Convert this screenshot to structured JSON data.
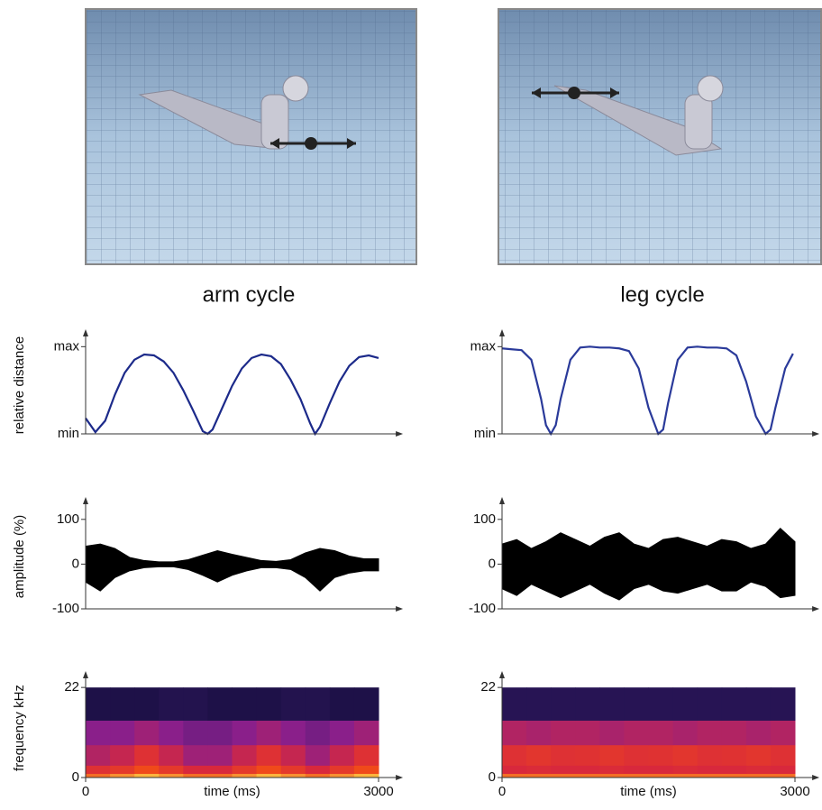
{
  "columns": [
    {
      "title": "arm cycle"
    },
    {
      "title": "leg cycle"
    }
  ],
  "chart_data": [
    {
      "type": "line",
      "ylabel": "relative distance",
      "xlim": [
        0,
        3250
      ],
      "ylim": [
        0,
        1.2
      ],
      "yticks": [
        {
          "value": 0,
          "label": "min"
        },
        {
          "value": 1,
          "label": "max"
        }
      ],
      "color": "#1c2a8a",
      "x": [
        0,
        100,
        200,
        300,
        400,
        500,
        600,
        700,
        800,
        900,
        1000,
        1100,
        1200,
        1250,
        1300,
        1400,
        1500,
        1600,
        1700,
        1800,
        1900,
        2000,
        2100,
        2200,
        2300,
        2350,
        2400,
        2500,
        2600,
        2700,
        2800,
        2900,
        3000
      ],
      "values": [
        0.18,
        0.02,
        0.15,
        0.45,
        0.7,
        0.85,
        0.91,
        0.9,
        0.83,
        0.7,
        0.5,
        0.27,
        0.03,
        0,
        0.05,
        0.3,
        0.55,
        0.75,
        0.87,
        0.91,
        0.89,
        0.8,
        0.62,
        0.4,
        0.12,
        0,
        0.08,
        0.35,
        0.6,
        0.78,
        0.88,
        0.9,
        0.87
      ]
    },
    {
      "type": "band",
      "ylabel": "amplitude (%)",
      "xlim": [
        0,
        3250
      ],
      "ylim": [
        -100,
        150
      ],
      "yticks": [
        -100,
        0,
        100
      ],
      "color": "#000000",
      "x": [
        0,
        150,
        300,
        450,
        600,
        750,
        900,
        1050,
        1200,
        1350,
        1500,
        1650,
        1800,
        1950,
        2100,
        2250,
        2400,
        2550,
        2700,
        2850,
        3000
      ],
      "upper": [
        40,
        45,
        35,
        15,
        8,
        5,
        5,
        10,
        20,
        30,
        22,
        15,
        8,
        6,
        10,
        25,
        35,
        30,
        18,
        12,
        12
      ],
      "lower": [
        -40,
        -60,
        -30,
        -15,
        -8,
        -6,
        -6,
        -12,
        -25,
        -40,
        -25,
        -15,
        -8,
        -8,
        -12,
        -30,
        -60,
        -30,
        -20,
        -15,
        -15
      ]
    },
    {
      "type": "heatmap",
      "ylabel": "frequency kHz",
      "xlabel": "time (ms)",
      "xlim": [
        0,
        3250
      ],
      "ylim": [
        0,
        26
      ],
      "yticks": [
        0,
        22
      ],
      "xticks": [
        0,
        3000
      ],
      "colormap": [
        "#0b0b2e",
        "#3a1a6e",
        "#8a1f8a",
        "#d8283c",
        "#f04a1a",
        "#ffd84a"
      ],
      "xbins": [
        0,
        250,
        500,
        750,
        1000,
        1250,
        1500,
        1750,
        2000,
        2250,
        2500,
        2750,
        3000
      ],
      "ybins": [
        0,
        1,
        3,
        8,
        14,
        22
      ],
      "z": [
        [
          0.85,
          0.9,
          0.95,
          0.9,
          0.85,
          0.85,
          0.9,
          0.95,
          0.9,
          0.85,
          0.9,
          0.95
        ],
        [
          0.65,
          0.7,
          0.8,
          0.7,
          0.6,
          0.6,
          0.7,
          0.8,
          0.7,
          0.6,
          0.7,
          0.8
        ],
        [
          0.5,
          0.55,
          0.65,
          0.55,
          0.45,
          0.45,
          0.55,
          0.65,
          0.55,
          0.45,
          0.55,
          0.65
        ],
        [
          0.4,
          0.4,
          0.45,
          0.4,
          0.35,
          0.35,
          0.4,
          0.45,
          0.4,
          0.35,
          0.4,
          0.45
        ],
        [
          0.08,
          0.08,
          0.08,
          0.1,
          0.1,
          0.08,
          0.08,
          0.08,
          0.1,
          0.1,
          0.08,
          0.08
        ]
      ]
    },
    {
      "type": "line",
      "xlim": [
        0,
        3250
      ],
      "ylim": [
        0,
        1.2
      ],
      "yticks": [
        {
          "value": 0,
          "label": "min"
        },
        {
          "value": 1,
          "label": "max"
        }
      ],
      "color": "#2a3a9a",
      "x": [
        0,
        100,
        200,
        300,
        400,
        450,
        500,
        550,
        600,
        700,
        800,
        900,
        1000,
        1100,
        1200,
        1300,
        1400,
        1500,
        1600,
        1650,
        1700,
        1800,
        1900,
        2000,
        2100,
        2200,
        2300,
        2400,
        2500,
        2600,
        2700,
        2750,
        2800,
        2900,
        2980
      ],
      "values": [
        0.98,
        0.97,
        0.96,
        0.85,
        0.4,
        0.1,
        0,
        0.1,
        0.4,
        0.85,
        0.99,
        1,
        0.99,
        0.99,
        0.98,
        0.95,
        0.75,
        0.3,
        0,
        0.05,
        0.35,
        0.85,
        0.99,
        1,
        0.99,
        0.99,
        0.98,
        0.9,
        0.6,
        0.2,
        0,
        0.05,
        0.3,
        0.75,
        0.92
      ]
    },
    {
      "type": "band",
      "xlim": [
        0,
        3250
      ],
      "ylim": [
        -100,
        150
      ],
      "yticks": [
        -100,
        0,
        100
      ],
      "color": "#000000",
      "x": [
        0,
        150,
        300,
        450,
        600,
        750,
        900,
        1050,
        1200,
        1350,
        1500,
        1650,
        1800,
        1950,
        2100,
        2250,
        2400,
        2550,
        2700,
        2850,
        3000
      ],
      "upper": [
        45,
        55,
        35,
        50,
        70,
        55,
        40,
        60,
        70,
        45,
        35,
        55,
        60,
        50,
        40,
        55,
        50,
        35,
        45,
        80,
        50
      ],
      "lower": [
        -55,
        -70,
        -45,
        -60,
        -75,
        -60,
        -45,
        -65,
        -80,
        -55,
        -45,
        -60,
        -65,
        -55,
        -45,
        -60,
        -60,
        -40,
        -50,
        -75,
        -70
      ]
    },
    {
      "type": "heatmap",
      "xlabel": "time (ms)",
      "xlim": [
        0,
        3250
      ],
      "ylim": [
        0,
        26
      ],
      "yticks": [
        0,
        22
      ],
      "xticks": [
        0,
        3000
      ],
      "colormap": [
        "#0b0b2e",
        "#3a1a6e",
        "#8a1f8a",
        "#d8283c",
        "#f04a1a",
        "#ffd84a"
      ],
      "xbins": [
        0,
        250,
        500,
        750,
        1000,
        1250,
        1500,
        1750,
        2000,
        2250,
        2500,
        2750,
        3000
      ],
      "ybins": [
        0,
        1,
        3,
        8,
        14,
        22
      ],
      "z": [
        [
          0.85,
          0.85,
          0.85,
          0.85,
          0.85,
          0.85,
          0.85,
          0.85,
          0.85,
          0.85,
          0.85,
          0.85
        ],
        [
          0.6,
          0.62,
          0.6,
          0.6,
          0.62,
          0.6,
          0.6,
          0.62,
          0.6,
          0.6,
          0.62,
          0.6
        ],
        [
          0.65,
          0.68,
          0.65,
          0.66,
          0.68,
          0.65,
          0.66,
          0.68,
          0.65,
          0.66,
          0.68,
          0.65
        ],
        [
          0.5,
          0.48,
          0.5,
          0.5,
          0.48,
          0.5,
          0.5,
          0.48,
          0.5,
          0.5,
          0.48,
          0.5
        ],
        [
          0.12,
          0.12,
          0.12,
          0.12,
          0.12,
          0.12,
          0.12,
          0.12,
          0.12,
          0.12,
          0.12,
          0.12
        ]
      ]
    }
  ]
}
